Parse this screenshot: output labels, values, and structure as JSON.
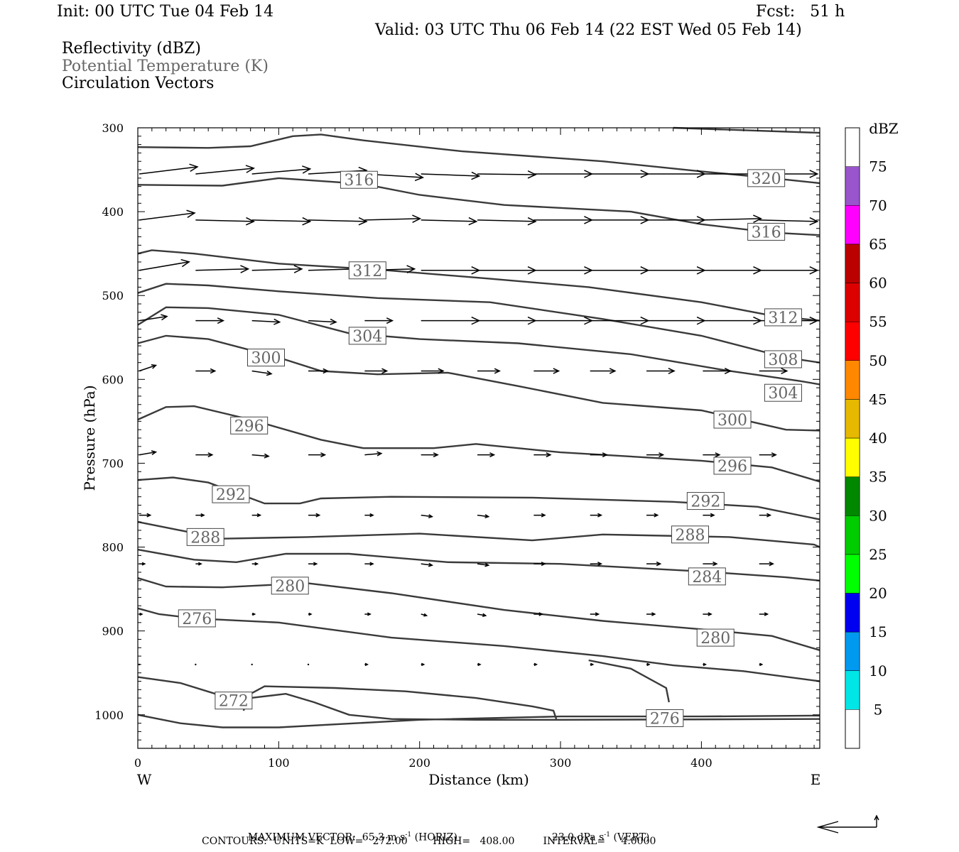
{
  "header": {
    "init": "Init: 00 UTC Tue 04 Feb 14",
    "fcst": "Fcst:   51 h",
    "valid": "Valid: 03 UTC Thu 06 Feb 14 (22 EST Wed 05 Feb 14)"
  },
  "fields": {
    "reflectivity": "Reflectivity (dBZ)",
    "theta": "Potential Temperature (K)",
    "vectors": "Circulation Vectors"
  },
  "colors": {
    "contour": "#3a3a3a",
    "vector": "#000000",
    "theta_label_text": "#666666"
  },
  "chart_data": {
    "type": "line",
    "xlabel": "Distance (km)",
    "ylabel": "Pressure (hPa)",
    "xlim": [
      0,
      484
    ],
    "ylim": [
      1040,
      300
    ],
    "y_scale": "linear, inverted",
    "x_ticks": [
      0,
      100,
      200,
      300,
      400
    ],
    "y_ticks": [
      300,
      400,
      500,
      600,
      700,
      800,
      900,
      1000
    ],
    "x_end_labels": {
      "left": "W",
      "right": "E"
    },
    "grid": false,
    "colorbar": {
      "unit": "dBZ",
      "labels": [
        "5",
        "10",
        "15",
        "20",
        "25",
        "30",
        "35",
        "40",
        "45",
        "50",
        "55",
        "60",
        "65",
        "70",
        "75"
      ],
      "colors": [
        "#00e6e6",
        "#0099f0",
        "#0000f0",
        "#00ff00",
        "#00cc00",
        "#008800",
        "#ffff00",
        "#e6b800",
        "#ff8800",
        "#ff0000",
        "#dd0000",
        "#bb0000",
        "#ff00ff",
        "#9955cc"
      ]
    },
    "theta_contours": [
      {
        "level": 276,
        "points": [
          [
            0,
            1000
          ],
          [
            30,
            1010
          ],
          [
            60,
            1015
          ],
          [
            100,
            1015
          ],
          [
            200,
            1006
          ],
          [
            300,
            1002
          ],
          [
            400,
            1002
          ],
          [
            484,
            1001
          ]
        ]
      },
      {
        "level": 272,
        "points": [
          [
            0,
            955
          ],
          [
            30,
            962
          ],
          [
            55,
            975
          ],
          [
            80,
            980
          ],
          [
            105,
            975
          ],
          [
            125,
            985
          ],
          [
            150,
            1000
          ],
          [
            180,
            1005
          ],
          [
            240,
            1006
          ],
          [
            300,
            1006
          ],
          [
            484,
            1005
          ]
        ]
      },
      {
        "level": 276,
        "points": [
          [
            75,
            995
          ],
          [
            80,
            975
          ],
          [
            90,
            966
          ],
          [
            140,
            968
          ],
          [
            190,
            972
          ],
          [
            240,
            980
          ],
          [
            280,
            990
          ],
          [
            295,
            995
          ],
          [
            297,
            1005
          ]
        ]
      },
      {
        "level": 276,
        "points": [
          [
            0,
            873
          ],
          [
            15,
            880
          ],
          [
            40,
            885
          ],
          [
            100,
            890
          ],
          [
            180,
            908
          ],
          [
            260,
            918
          ],
          [
            330,
            930
          ],
          [
            380,
            941
          ],
          [
            430,
            948
          ],
          [
            484,
            960
          ]
        ]
      },
      {
        "level": 276,
        "points": [
          [
            320,
            935
          ],
          [
            350,
            945
          ],
          [
            375,
            968
          ],
          [
            377,
            985
          ]
        ]
      },
      {
        "level": 280,
        "points": [
          [
            0,
            837
          ],
          [
            20,
            847
          ],
          [
            60,
            848
          ],
          [
            120,
            843
          ],
          [
            180,
            855
          ],
          [
            260,
            875
          ],
          [
            330,
            888
          ],
          [
            400,
            898
          ],
          [
            450,
            906
          ],
          [
            484,
            923
          ]
        ]
      },
      {
        "level": 284,
        "points": [
          [
            0,
            803
          ],
          [
            40,
            815
          ],
          [
            70,
            818
          ],
          [
            105,
            808
          ],
          [
            150,
            808
          ],
          [
            220,
            818
          ],
          [
            300,
            820
          ],
          [
            400,
            829
          ],
          [
            460,
            836
          ],
          [
            484,
            840
          ]
        ]
      },
      {
        "level": 288,
        "points": [
          [
            0,
            770
          ],
          [
            30,
            780
          ],
          [
            60,
            790
          ],
          [
            120,
            788
          ],
          [
            200,
            784
          ],
          [
            280,
            792
          ],
          [
            330,
            785
          ],
          [
            420,
            788
          ],
          [
            480,
            797
          ],
          [
            484,
            800
          ]
        ]
      },
      {
        "level": 292,
        "points": [
          [
            0,
            720
          ],
          [
            25,
            717
          ],
          [
            50,
            723
          ],
          [
            90,
            748
          ],
          [
            115,
            748
          ],
          [
            130,
            742
          ],
          [
            180,
            740
          ],
          [
            280,
            741
          ],
          [
            380,
            746
          ],
          [
            440,
            752
          ],
          [
            484,
            767
          ]
        ]
      },
      {
        "level": 296,
        "points": [
          [
            0,
            648
          ],
          [
            20,
            633
          ],
          [
            40,
            632
          ],
          [
            80,
            648
          ],
          [
            130,
            672
          ],
          [
            160,
            682
          ],
          [
            210,
            682
          ],
          [
            240,
            677
          ],
          [
            300,
            687
          ],
          [
            400,
            697
          ],
          [
            450,
            705
          ],
          [
            484,
            722
          ]
        ]
      },
      {
        "level": 300,
        "points": [
          [
            0,
            557
          ],
          [
            20,
            548
          ],
          [
            50,
            552
          ],
          [
            100,
            574
          ],
          [
            130,
            590
          ],
          [
            170,
            594
          ],
          [
            220,
            592
          ],
          [
            270,
            608
          ],
          [
            330,
            628
          ],
          [
            400,
            637
          ],
          [
            460,
            660
          ],
          [
            484,
            661
          ]
        ]
      },
      {
        "level": 304,
        "points": [
          [
            0,
            535
          ],
          [
            20,
            514
          ],
          [
            50,
            515
          ],
          [
            100,
            523
          ],
          [
            150,
            545
          ],
          [
            200,
            552
          ],
          [
            270,
            557
          ],
          [
            350,
            570
          ],
          [
            420,
            590
          ],
          [
            470,
            602
          ],
          [
            484,
            606
          ]
        ]
      },
      {
        "level": 308,
        "points": [
          [
            0,
            497
          ],
          [
            20,
            486
          ],
          [
            50,
            488
          ],
          [
            100,
            495
          ],
          [
            170,
            503
          ],
          [
            250,
            508
          ],
          [
            330,
            528
          ],
          [
            400,
            548
          ],
          [
            460,
            574
          ],
          [
            484,
            580
          ]
        ]
      },
      {
        "level": 312,
        "points": [
          [
            0,
            450
          ],
          [
            10,
            446
          ],
          [
            40,
            450
          ],
          [
            100,
            462
          ],
          [
            170,
            469
          ],
          [
            250,
            480
          ],
          [
            320,
            490
          ],
          [
            400,
            508
          ],
          [
            450,
            524
          ],
          [
            484,
            530
          ]
        ]
      },
      {
        "level": 316,
        "points": [
          [
            0,
            368
          ],
          [
            60,
            369
          ],
          [
            100,
            360
          ],
          [
            160,
            367
          ],
          [
            200,
            380
          ],
          [
            260,
            392
          ],
          [
            350,
            400
          ],
          [
            400,
            415
          ],
          [
            450,
            425
          ],
          [
            484,
            428
          ]
        ]
      },
      {
        "level": 320,
        "points": [
          [
            0,
            323
          ],
          [
            50,
            324
          ],
          [
            80,
            322
          ],
          [
            110,
            310
          ],
          [
            130,
            308
          ],
          [
            160,
            315
          ],
          [
            230,
            328
          ],
          [
            330,
            340
          ],
          [
            400,
            352
          ],
          [
            450,
            360
          ],
          [
            484,
            366
          ]
        ]
      },
      {
        "level": 324,
        "points": [
          [
            380,
            300
          ],
          [
            484,
            306
          ]
        ]
      }
    ],
    "theta_labels": [
      {
        "text": "316",
        "x": 157,
        "y": 362
      },
      {
        "text": "320",
        "x": 446,
        "y": 360
      },
      {
        "text": "316",
        "x": 446,
        "y": 424
      },
      {
        "text": "312",
        "x": 163,
        "y": 470
      },
      {
        "text": "312",
        "x": 458,
        "y": 526
      },
      {
        "text": "304",
        "x": 163,
        "y": 548
      },
      {
        "text": "308",
        "x": 458,
        "y": 576
      },
      {
        "text": "300",
        "x": 91,
        "y": 574
      },
      {
        "text": "304",
        "x": 458,
        "y": 616
      },
      {
        "text": "300",
        "x": 422,
        "y": 648
      },
      {
        "text": "296",
        "x": 79,
        "y": 655
      },
      {
        "text": "296",
        "x": 422,
        "y": 703
      },
      {
        "text": "292",
        "x": 66,
        "y": 737
      },
      {
        "text": "292",
        "x": 403,
        "y": 745
      },
      {
        "text": "288",
        "x": 48,
        "y": 788
      },
      {
        "text": "288",
        "x": 392,
        "y": 785
      },
      {
        "text": "284",
        "x": 404,
        "y": 835
      },
      {
        "text": "280",
        "x": 108,
        "y": 846
      },
      {
        "text": "276",
        "x": 42,
        "y": 885
      },
      {
        "text": "280",
        "x": 410,
        "y": 908
      },
      {
        "text": "272",
        "x": 68,
        "y": 983
      },
      {
        "text": "276",
        "x": 374,
        "y": 1004
      }
    ],
    "vector_rows": [
      {
        "p": 355,
        "dx": [
          42,
          42,
          42,
          42,
          42,
          42,
          42,
          42,
          42,
          42,
          42,
          42
        ],
        "dy": [
          -10,
          -8,
          -7,
          -5,
          5,
          3,
          1,
          0,
          0,
          0,
          0,
          0
        ]
      },
      {
        "p": 410,
        "dx": [
          40,
          42,
          42,
          42,
          40,
          40,
          42,
          42,
          42,
          42,
          42,
          42
        ],
        "dy": [
          -10,
          2,
          2,
          2,
          -2,
          2,
          2,
          0,
          0,
          0,
          -2,
          2
        ]
      },
      {
        "p": 470,
        "dx": [
          36,
          38,
          36,
          36,
          36,
          42,
          42,
          42,
          42,
          42,
          42,
          42
        ],
        "dy": [
          -12,
          -2,
          -2,
          -2,
          -2,
          0,
          0,
          0,
          0,
          0,
          0,
          0
        ]
      },
      {
        "p": 530,
        "dx": [
          20,
          20,
          20,
          20,
          20,
          42,
          42,
          42,
          42,
          42,
          42,
          42
        ],
        "dy": [
          -6,
          0,
          2,
          2,
          0,
          0,
          0,
          0,
          0,
          0,
          0,
          0
        ]
      },
      {
        "p": 590,
        "dx": [
          12,
          14,
          14,
          14,
          16,
          16,
          16,
          18,
          18,
          20,
          20,
          20
        ],
        "dy": [
          -8,
          0,
          4,
          0,
          0,
          0,
          0,
          0,
          0,
          0,
          0,
          0
        ]
      },
      {
        "p": 690,
        "dx": [
          12,
          12,
          12,
          12,
          12,
          12,
          12,
          12,
          12,
          12,
          12,
          12
        ],
        "dy": [
          -4,
          0,
          2,
          0,
          -2,
          0,
          0,
          0,
          0,
          0,
          0,
          0
        ]
      },
      {
        "p": 762,
        "dx": [
          8,
          6,
          6,
          8,
          6,
          8,
          8,
          8,
          8,
          8,
          8,
          8
        ],
        "dy": [
          0,
          0,
          0,
          0,
          0,
          2,
          2,
          0,
          0,
          0,
          0,
          0
        ]
      },
      {
        "p": 820,
        "dx": [
          4,
          4,
          4,
          6,
          6,
          8,
          8,
          8,
          8,
          10,
          10,
          10
        ],
        "dy": [
          0,
          0,
          0,
          0,
          0,
          2,
          2,
          0,
          0,
          0,
          0,
          0
        ]
      },
      {
        "p": 880,
        "dx": [
          2,
          2,
          2,
          2,
          4,
          4,
          6,
          6,
          6,
          6,
          6,
          6
        ],
        "dy": [
          0,
          0,
          0,
          0,
          0,
          2,
          2,
          0,
          0,
          0,
          0,
          0
        ]
      },
      {
        "p": 940,
        "dx": [
          0,
          1,
          1,
          1,
          2,
          2,
          2,
          2,
          2,
          2,
          2,
          2
        ],
        "dy": [
          0,
          0,
          0,
          0,
          0,
          0,
          0,
          0,
          0,
          0,
          0,
          0
        ]
      }
    ],
    "max_vector": "MAXIMUM VECTOR:  65.3 m s",
    "max_vector_unit_horiz": "(HORIZ)",
    "max_vector_vert": "23.0 dPa s",
    "max_vector_unit_vert": "(VERT)",
    "sup": "-1",
    "contours_line": "CONTOURS:  UNITS=K  LOW=   272.00        HIGH=   408.00         INTERVAL=     4.0000"
  }
}
